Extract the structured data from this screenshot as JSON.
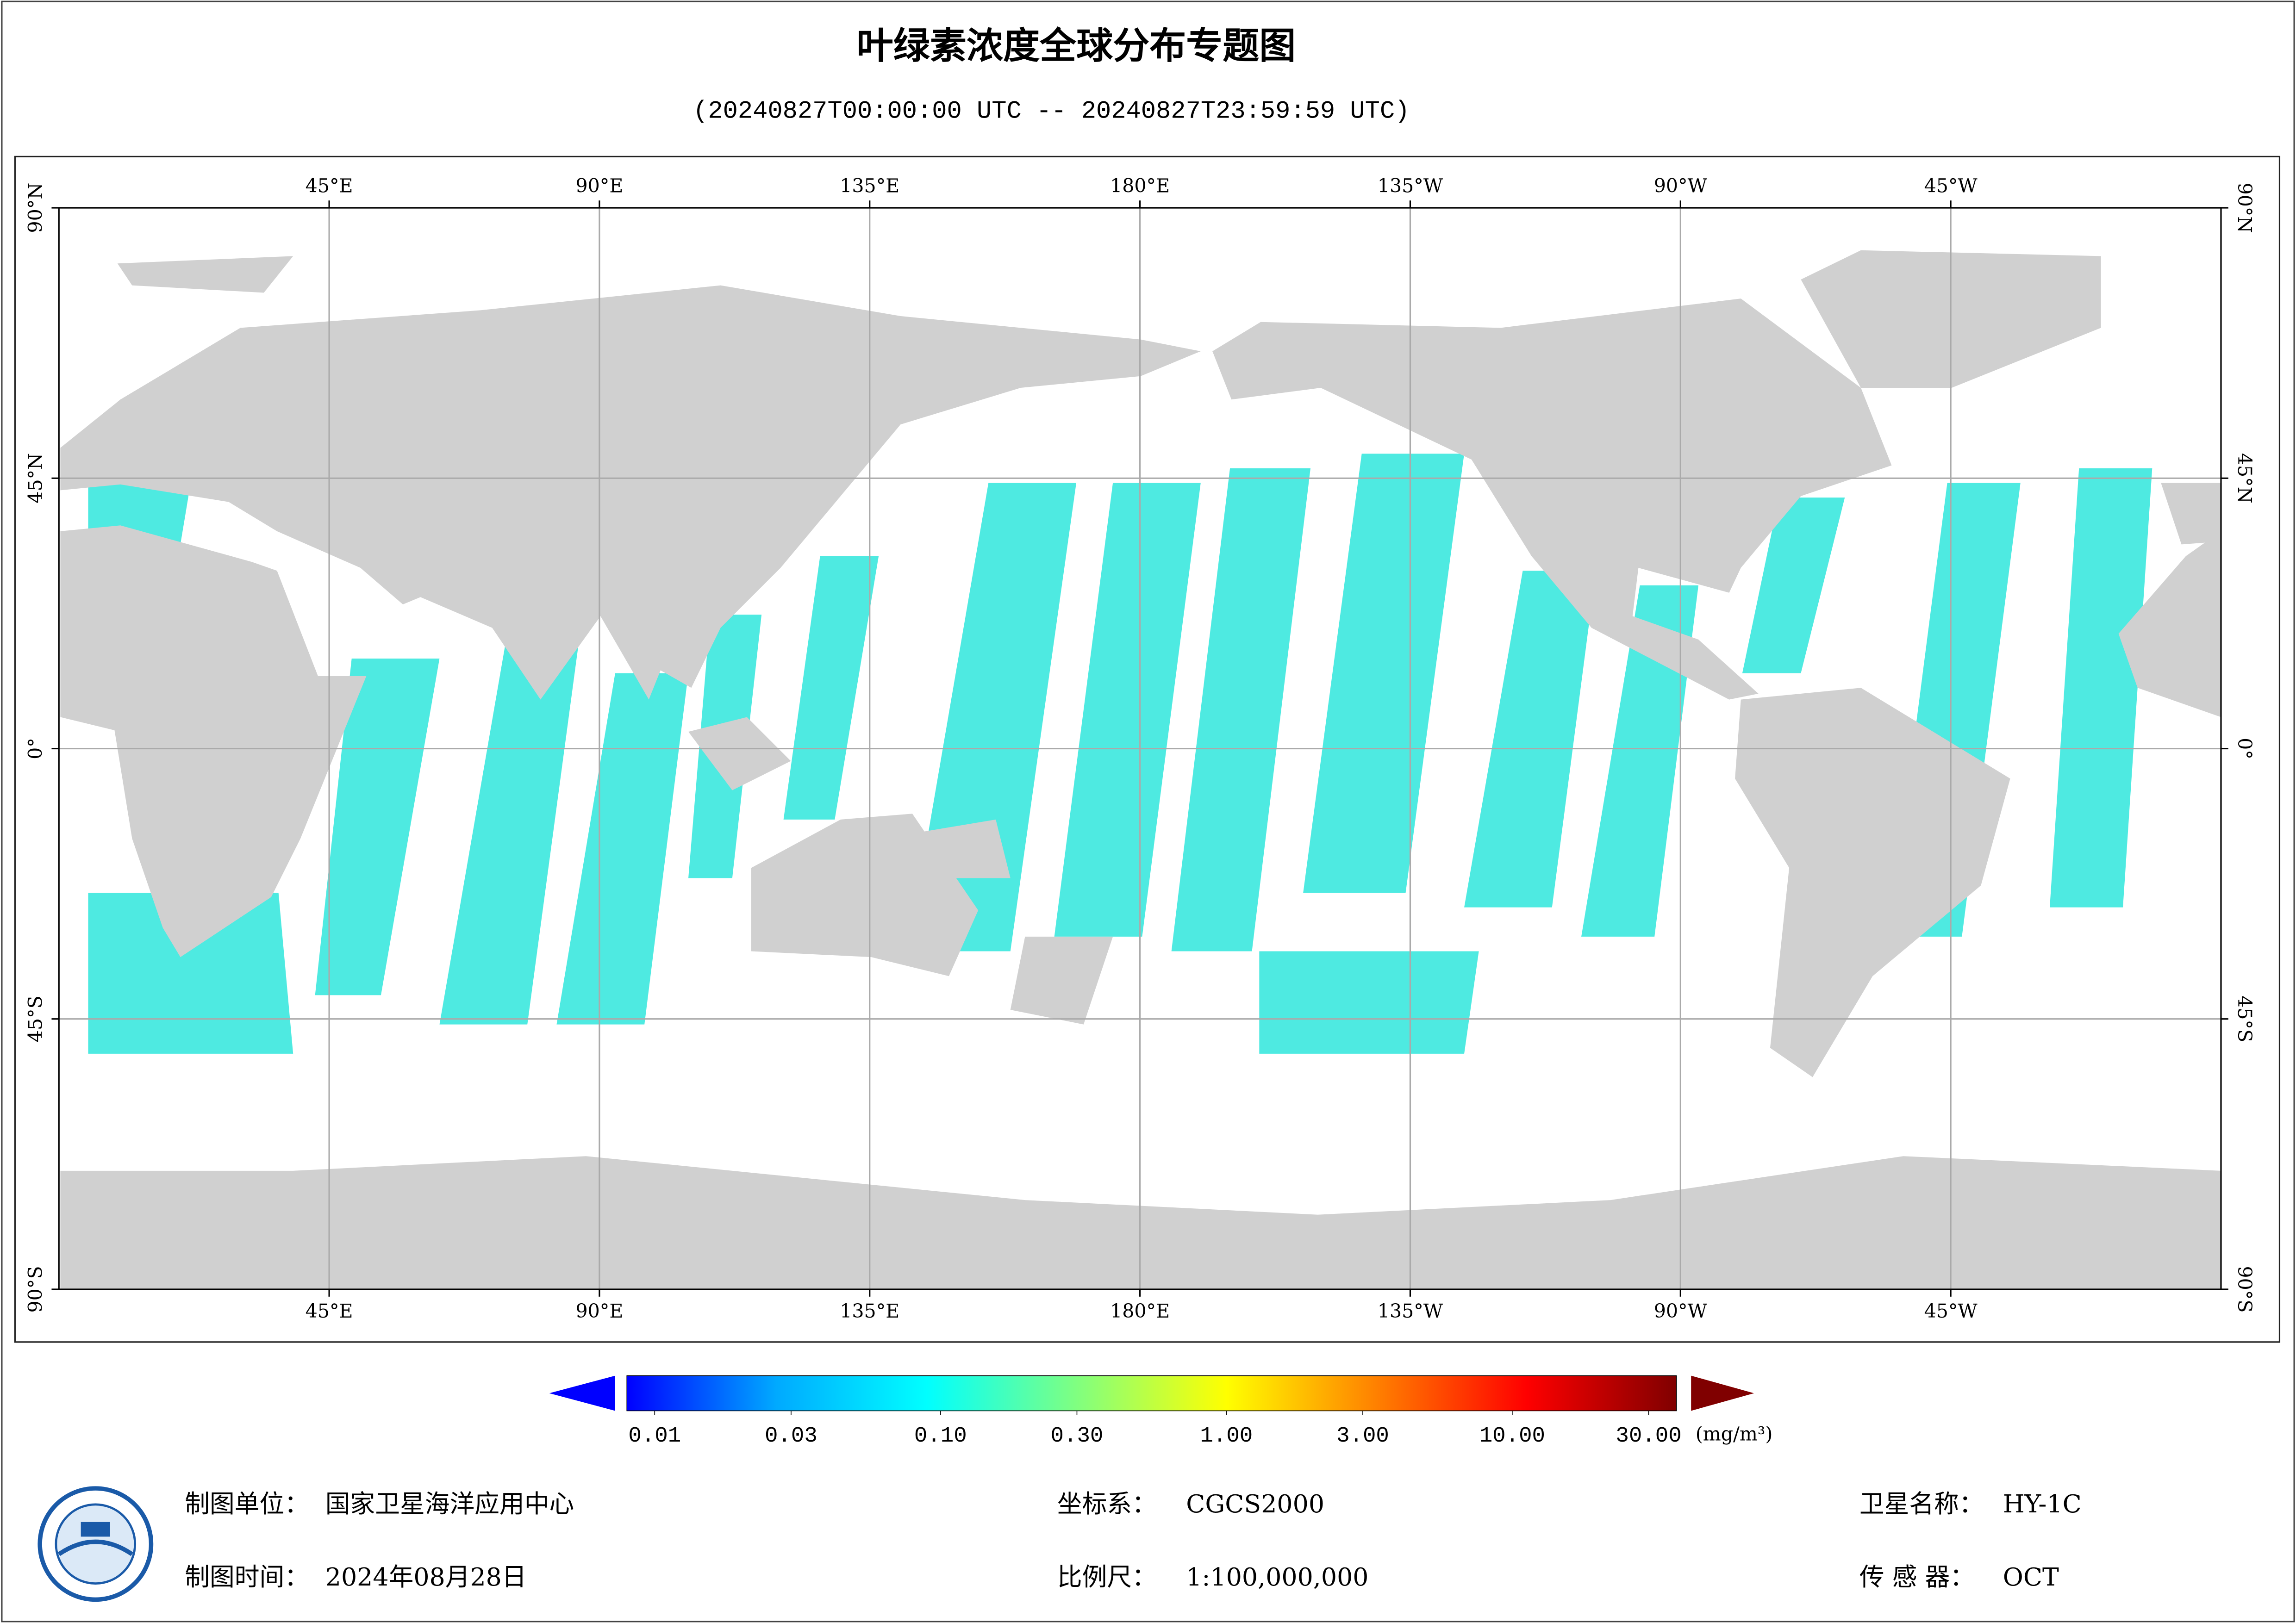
{
  "header": {
    "title": "叶绿素浓度全球分布专题图",
    "subtitle": "(20240827T00:00:00 UTC -- 20240827T23:59:59 UTC)"
  },
  "map": {
    "lonlim": [
      0,
      360
    ],
    "latlim": [
      -90,
      90
    ],
    "grid": true,
    "lonticks": [
      {
        "value": 45,
        "label": "45°E"
      },
      {
        "value": 90,
        "label": "90°E"
      },
      {
        "value": 135,
        "label": "135°E"
      },
      {
        "value": 180,
        "label": "180°E"
      },
      {
        "value": 225,
        "label": "135°W"
      },
      {
        "value": 270,
        "label": "90°W"
      },
      {
        "value": 315,
        "label": "45°W"
      }
    ],
    "latticks": [
      {
        "value": 90,
        "label": "90°N"
      },
      {
        "value": 45,
        "label": "45°N"
      },
      {
        "value": 0,
        "label": "0°"
      },
      {
        "value": -45,
        "label": "45°S"
      },
      {
        "value": -90,
        "label": "90°S"
      }
    ]
  },
  "colorbar": {
    "log": true,
    "unit": "(mg/m³)",
    "colors": [
      "#0000ff",
      "#00aaff",
      "#00ffff",
      "#80ff80",
      "#ffff00",
      "#ff8000",
      "#ff0000",
      "#800000"
    ],
    "ticks": [
      0.01,
      0.03,
      {
        "value": 0.1,
        "label": "0.10"
      },
      {
        "value": 0.3,
        "label": "0.30"
      },
      {
        "value": 1,
        "label": "1.00"
      },
      {
        "value": 3,
        "label": "3.00"
      },
      {
        "value": 10,
        "label": "10.00"
      },
      {
        "value": 30,
        "label": "30.00"
      }
    ]
  },
  "footer": {
    "org_label": "制图单位：",
    "org": "国家卫星海洋应用中心",
    "date_label": "制图时间：",
    "date": "2024年08月28日",
    "crs_label": "坐标系：",
    "crs": "CGCS2000",
    "scale_label": "比例尺：",
    "scale": "1:100,000,000",
    "satellite_label": "卫星名称：",
    "satellite": "HY-1C",
    "sensor_label": "传 感 器：",
    "sensor": "OCT"
  }
}
